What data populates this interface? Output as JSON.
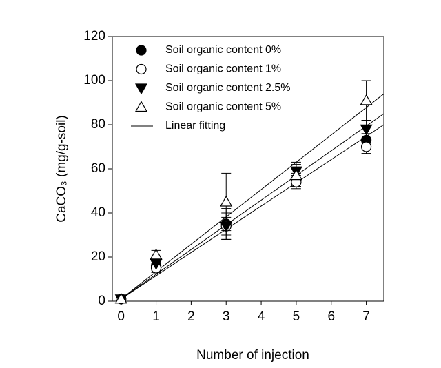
{
  "chart_data": {
    "type": "scatter",
    "x_label": "Number of injection",
    "y_label": "CaCO₃ (mg/g-soil)",
    "xlim": [
      -0.25,
      7.5
    ],
    "ylim": [
      0,
      120
    ],
    "xticks": [
      0,
      1,
      2,
      3,
      4,
      5,
      6,
      7
    ],
    "yticks": [
      0,
      20,
      40,
      60,
      80,
      100,
      120
    ],
    "x": [
      0,
      1,
      3,
      5,
      7
    ],
    "series": [
      {
        "name": "Soil organic content 0%",
        "color": "#000000",
        "marker": "circle",
        "filled": true,
        "values": [
          1,
          16,
          35,
          55,
          73
        ],
        "errors": [
          0,
          2,
          7,
          3,
          3
        ]
      },
      {
        "name": "Soil organic content 1%",
        "color": "#000000",
        "marker": "circle",
        "filled": false,
        "values": [
          1,
          15,
          34,
          54,
          70
        ],
        "errors": [
          0,
          2,
          4,
          3,
          3
        ]
      },
      {
        "name": "Soil organic content 2.5%",
        "color": "#000000",
        "marker": "triangle-down",
        "filled": true,
        "values": [
          1,
          17,
          34,
          59,
          78
        ],
        "errors": [
          0,
          1,
          6,
          4,
          4
        ]
      },
      {
        "name": "Soil organic content 5%",
        "color": "#000000",
        "marker": "triangle-up",
        "filled": false,
        "values": [
          1,
          21,
          45,
          57,
          91
        ],
        "errors": [
          0,
          2,
          13,
          5,
          9
        ]
      }
    ],
    "fit": {
      "name": "Linear fitting",
      "color": "#000000",
      "lines": [
        {
          "x": [
            0,
            7.5
          ],
          "values": [
            1,
            80
          ]
        },
        {
          "x": [
            0,
            7.5
          ],
          "values": [
            1,
            85
          ]
        },
        {
          "x": [
            0,
            7.5
          ],
          "values": [
            1,
            94
          ]
        }
      ]
    }
  }
}
